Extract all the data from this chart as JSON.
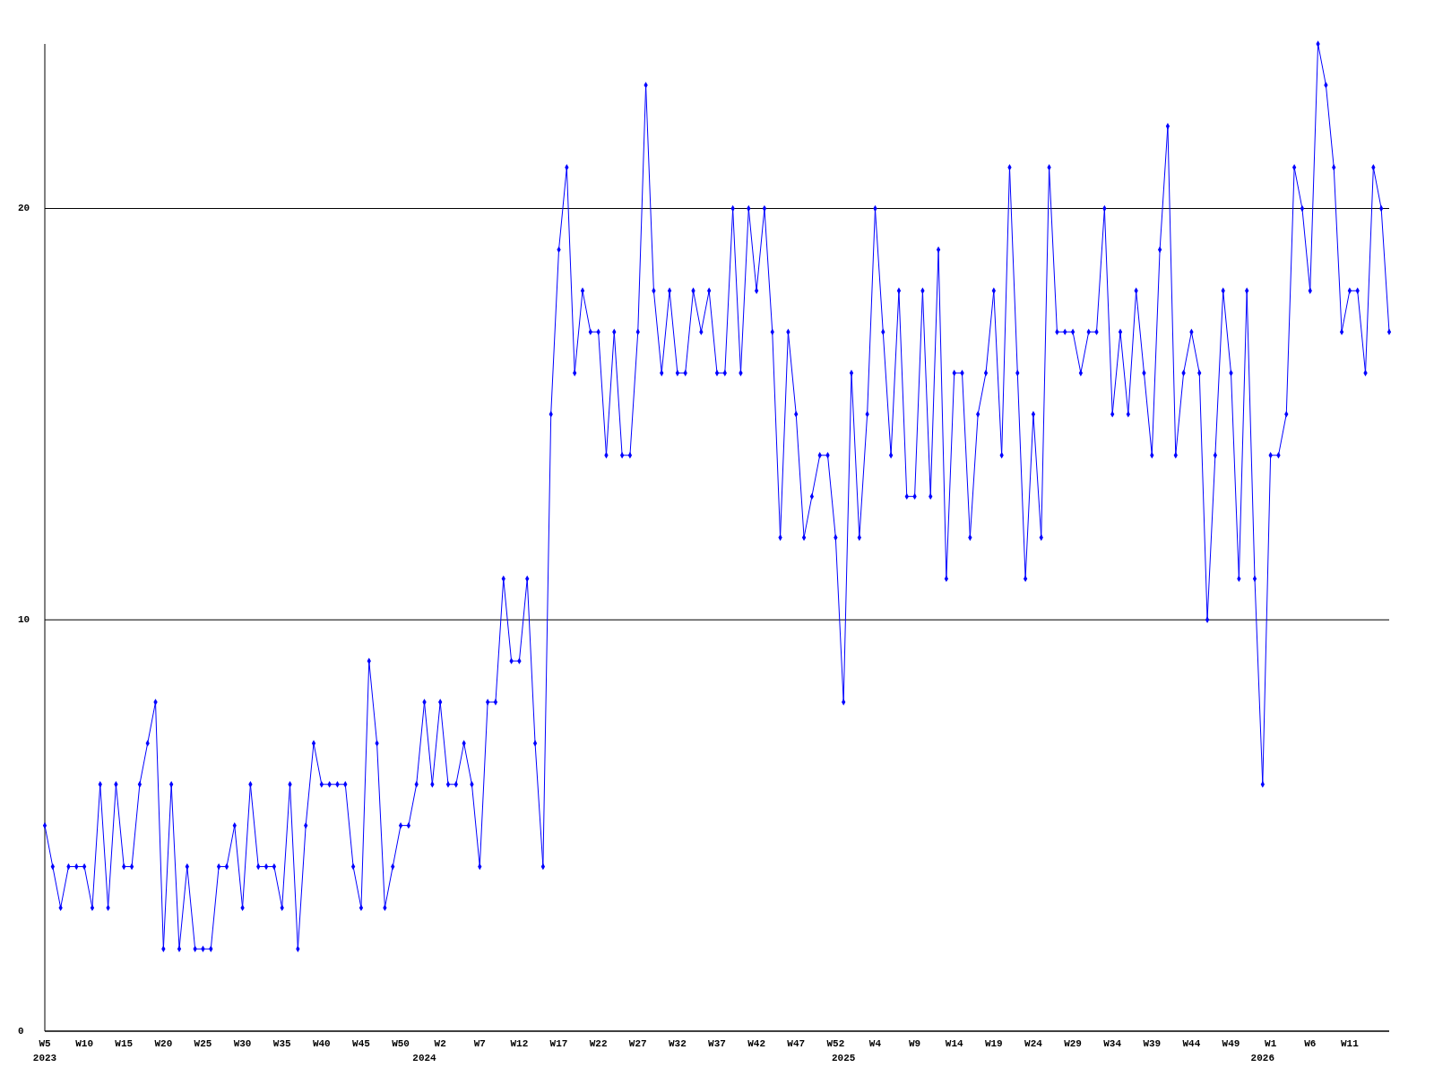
{
  "chart_data": {
    "type": "line",
    "categories": [
      "W5\n2023",
      null,
      null,
      null,
      null,
      "W10",
      null,
      null,
      null,
      null,
      "W15",
      null,
      null,
      null,
      null,
      "W20",
      null,
      null,
      null,
      null,
      "W25",
      null,
      null,
      null,
      null,
      "W30",
      null,
      null,
      null,
      null,
      "W35",
      null,
      null,
      null,
      null,
      "W40",
      null,
      null,
      null,
      null,
      "W45",
      null,
      null,
      null,
      null,
      "W50",
      null,
      null,
      "\n2024",
      null,
      "W2",
      null,
      null,
      null,
      null,
      "W7",
      null,
      null,
      null,
      null,
      "W12",
      null,
      null,
      null,
      null,
      "W17",
      null,
      null,
      null,
      null,
      "W22",
      null,
      null,
      null,
      null,
      "W27",
      null,
      null,
      null,
      null,
      "W32",
      null,
      null,
      null,
      null,
      "W37",
      null,
      null,
      null,
      null,
      "W42",
      null,
      null,
      null,
      null,
      "W47",
      null,
      null,
      null,
      null,
      "W52",
      "\n2025",
      null,
      null,
      null,
      "W4",
      null,
      null,
      null,
      null,
      "W9",
      null,
      null,
      null,
      null,
      "W14",
      null,
      null,
      null,
      null,
      "W19",
      null,
      null,
      null,
      null,
      "W24",
      null,
      null,
      null,
      null,
      "W29",
      null,
      null,
      null,
      null,
      "W34",
      null,
      null,
      null,
      null,
      "W39",
      null,
      null,
      null,
      null,
      "W44",
      null,
      null,
      null,
      null,
      "W49",
      null,
      null,
      null,
      "\n2026",
      "W1",
      null,
      null,
      null,
      null,
      "W6",
      null,
      null,
      null,
      null,
      "W11",
      null,
      null,
      null,
      null,
      null
    ],
    "series": [
      {
        "color": "#0000ff",
        "values": [
          5,
          4,
          3,
          4,
          4,
          4,
          3,
          6,
          3,
          6,
          4,
          4,
          6,
          7,
          8,
          2,
          6,
          2,
          4,
          2,
          2,
          2,
          4,
          4,
          5,
          3,
          6,
          4,
          4,
          4,
          3,
          6,
          2,
          5,
          7,
          6,
          6,
          6,
          6,
          4,
          3,
          9,
          7,
          3,
          4,
          5,
          5,
          6,
          8,
          6,
          8,
          6,
          6,
          7,
          6,
          4,
          8,
          8,
          11,
          9,
          9,
          11,
          7,
          4,
          15,
          19,
          21,
          16,
          18,
          17,
          17,
          14,
          17,
          14,
          14,
          17,
          23,
          18,
          16,
          18,
          16,
          16,
          18,
          17,
          18,
          16,
          16,
          20,
          16,
          20,
          18,
          20,
          17,
          12,
          17,
          15,
          12,
          13,
          14,
          14,
          12,
          8,
          16,
          12,
          15,
          20,
          17,
          14,
          18,
          13,
          13,
          18,
          13,
          19,
          11,
          16,
          16,
          12,
          15,
          16,
          18,
          14,
          21,
          16,
          11,
          15,
          12,
          21,
          17,
          17,
          17,
          16,
          17,
          17,
          20,
          15,
          17,
          15,
          18,
          16,
          14,
          19,
          22,
          14,
          16,
          17,
          16,
          10,
          14,
          18,
          16,
          11,
          18,
          11,
          6,
          14,
          14,
          15,
          21,
          20,
          18,
          24,
          23,
          21,
          17,
          18,
          18,
          16,
          21,
          20,
          17
        ]
      }
    ],
    "ylim": [
      0,
      24
    ],
    "yticks": [
      0,
      10,
      20
    ],
    "grid": "y",
    "marker": "diamond",
    "line_style": "solid"
  }
}
